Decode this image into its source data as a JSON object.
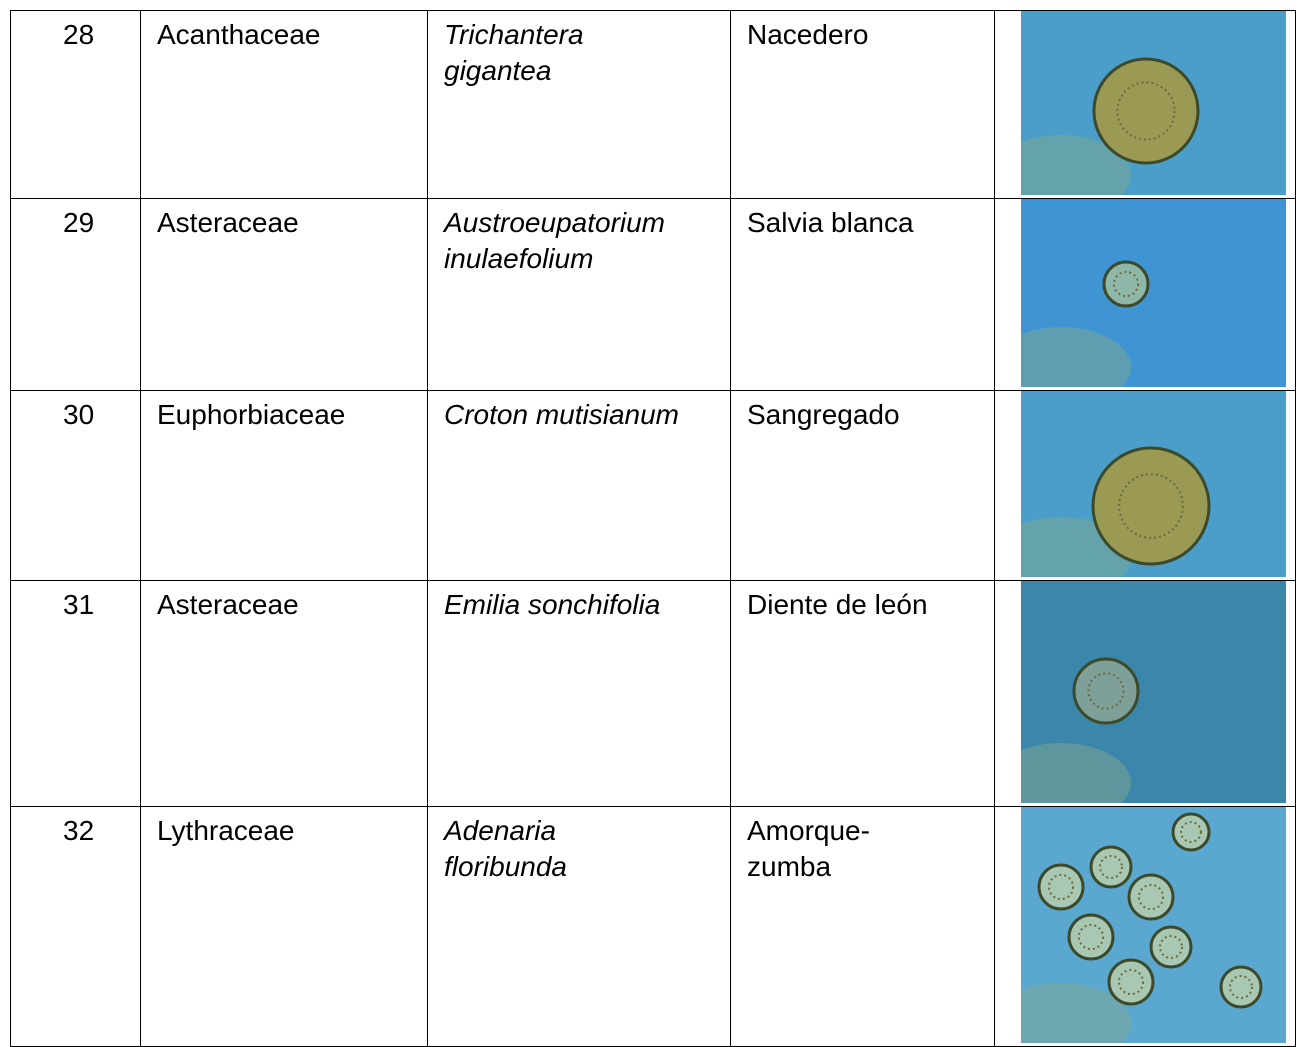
{
  "table": {
    "rows": [
      [
        "28",
        "Acanthaceae",
        "Trichantera\ngigantea",
        "Nacedero"
      ],
      [
        "29",
        "Asteraceae",
        "Austroeupatorium inulaefolium",
        "Salvia blanca"
      ],
      [
        "30",
        "Euphorbiaceae",
        "Croton mutisianum",
        "Sangregado"
      ],
      [
        "31",
        "Asteraceae",
        "Emilia sonchifolia",
        "Diente de león"
      ],
      [
        "32",
        "Lythraceae",
        "Adenaria\nfloribunda",
        "Amorque-\nzumba"
      ]
    ]
  }
}
